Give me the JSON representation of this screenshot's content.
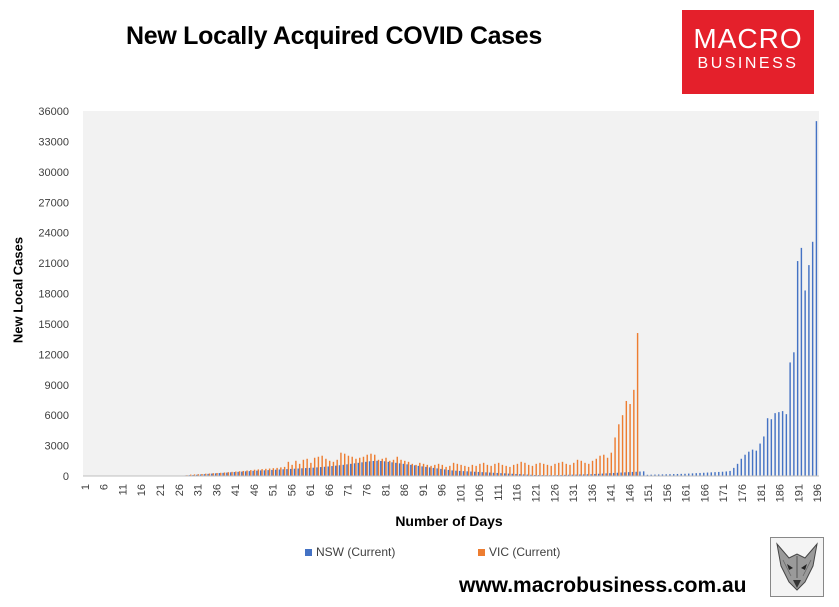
{
  "chart_data": {
    "type": "bar",
    "title": "New Locally Acquired COVID Cases",
    "xlabel": "Number of Days",
    "ylabel": "New Local Cases",
    "ylim": [
      0,
      36000
    ],
    "yticks": [
      "0",
      "3000",
      "6000",
      "9000",
      "12000",
      "15000",
      "18000",
      "21000",
      "24000",
      "27000",
      "30000",
      "33000",
      "36000"
    ],
    "xticks": [
      "1",
      "6",
      "11",
      "16",
      "21",
      "26",
      "31",
      "36",
      "41",
      "46",
      "51",
      "56",
      "61",
      "66",
      "71",
      "76",
      "81",
      "86",
      "91",
      "96",
      "101",
      "106",
      "111",
      "116",
      "121",
      "126",
      "131",
      "136",
      "141",
      "146",
      "151",
      "156",
      "161",
      "166",
      "171",
      "176",
      "181",
      "186",
      "191",
      "196"
    ],
    "grid": false,
    "legend_position": "bottom",
    "x_start": 1,
    "series": [
      {
        "name": "NSW (Current)",
        "color": "#4472c4",
        "values": [
          0,
          0,
          0,
          0,
          0,
          0,
          0,
          0,
          0,
          0,
          0,
          0,
          0,
          0,
          0,
          0,
          0,
          0,
          0,
          5,
          12,
          18,
          8,
          6,
          20,
          25,
          40,
          60,
          80,
          100,
          120,
          150,
          180,
          210,
          240,
          260,
          290,
          310,
          330,
          360,
          390,
          410,
          430,
          460,
          480,
          510,
          530,
          550,
          560,
          580,
          600,
          620,
          640,
          660,
          680,
          700,
          720,
          740,
          760,
          780,
          800,
          820,
          850,
          880,
          910,
          940,
          980,
          1020,
          1060,
          1100,
          1150,
          1200,
          1250,
          1300,
          1350,
          1400,
          1450,
          1480,
          1500,
          1480,
          1450,
          1400,
          1350,
          1300,
          1250,
          1200,
          1150,
          1100,
          1050,
          1000,
          950,
          900,
          850,
          800,
          750,
          700,
          650,
          600,
          550,
          520,
          500,
          480,
          460,
          440,
          420,
          400,
          380,
          360,
          340,
          320,
          300,
          280,
          260,
          240,
          220,
          200,
          180,
          160,
          140,
          120,
          100,
          95,
          90,
          85,
          80,
          80,
          90,
          100,
          110,
          120,
          130,
          140,
          150,
          160,
          170,
          180,
          200,
          220,
          240,
          260,
          280,
          300,
          320,
          340,
          360,
          380,
          400,
          420,
          440,
          460,
          120,
          130,
          140,
          150,
          160,
          170,
          180,
          190,
          200,
          210,
          220,
          240,
          260,
          280,
          300,
          320,
          340,
          360,
          380,
          400,
          420,
          450,
          500,
          800,
          1200,
          1700,
          2100,
          2400,
          2600,
          2500,
          3200,
          3900,
          5700,
          5600,
          6200,
          6300,
          6400,
          6100,
          11200,
          12200,
          21200,
          22500,
          18300,
          20800,
          23100,
          35000
        ]
      },
      {
        "name": "VIC (Current)",
        "color": "#ed7d31",
        "values": [
          0,
          0,
          0,
          0,
          0,
          0,
          0,
          0,
          0,
          0,
          0,
          0,
          0,
          0,
          0,
          0,
          0,
          0,
          0,
          0,
          0,
          0,
          0,
          0,
          0,
          0,
          0,
          80,
          140,
          160,
          180,
          200,
          230,
          250,
          280,
          300,
          320,
          350,
          380,
          410,
          440,
          470,
          500,
          540,
          580,
          620,
          650,
          680,
          710,
          740,
          770,
          800,
          850,
          900,
          1400,
          1100,
          1500,
          1200,
          1600,
          1700,
          1300,
          1800,
          1900,
          2000,
          1700,
          1500,
          1400,
          1600,
          2300,
          2200,
          2000,
          1900,
          1700,
          1800,
          1900,
          2100,
          2200,
          2100,
          1600,
          1700,
          1800,
          1500,
          1600,
          1900,
          1600,
          1500,
          1400,
          1200,
          1100,
          1300,
          1200,
          1100,
          1000,
          1100,
          1200,
          1100,
          900,
          1000,
          1300,
          1200,
          1100,
          1000,
          900,
          1100,
          1000,
          1200,
          1300,
          1100,
          1000,
          1200,
          1300,
          1100,
          1000,
          900,
          1100,
          1200,
          1400,
          1300,
          1100,
          1000,
          1200,
          1300,
          1200,
          1100,
          1000,
          1200,
          1300,
          1400,
          1200,
          1100,
          1300,
          1600,
          1500,
          1300,
          1200,
          1500,
          1700,
          2000,
          2100,
          1800,
          2300,
          3800,
          5100,
          6000,
          7400,
          7100,
          8500,
          14100,
          0,
          0,
          0,
          0,
          0,
          0,
          0,
          0,
          0,
          0,
          0,
          0,
          0,
          0,
          0,
          0,
          0,
          0,
          0,
          0,
          0,
          0,
          0,
          0,
          0,
          0,
          0,
          0,
          0,
          0,
          0,
          0,
          0,
          0,
          0,
          0,
          0,
          0,
          0,
          0,
          0,
          0,
          0,
          0,
          0
        ]
      }
    ]
  },
  "logo": {
    "line1": "MACRO",
    "line2": "BUSINESS",
    "color": "#e4202b"
  },
  "website": "www.macrobusiness.com.au",
  "fox_icon": "fox-head-icon"
}
